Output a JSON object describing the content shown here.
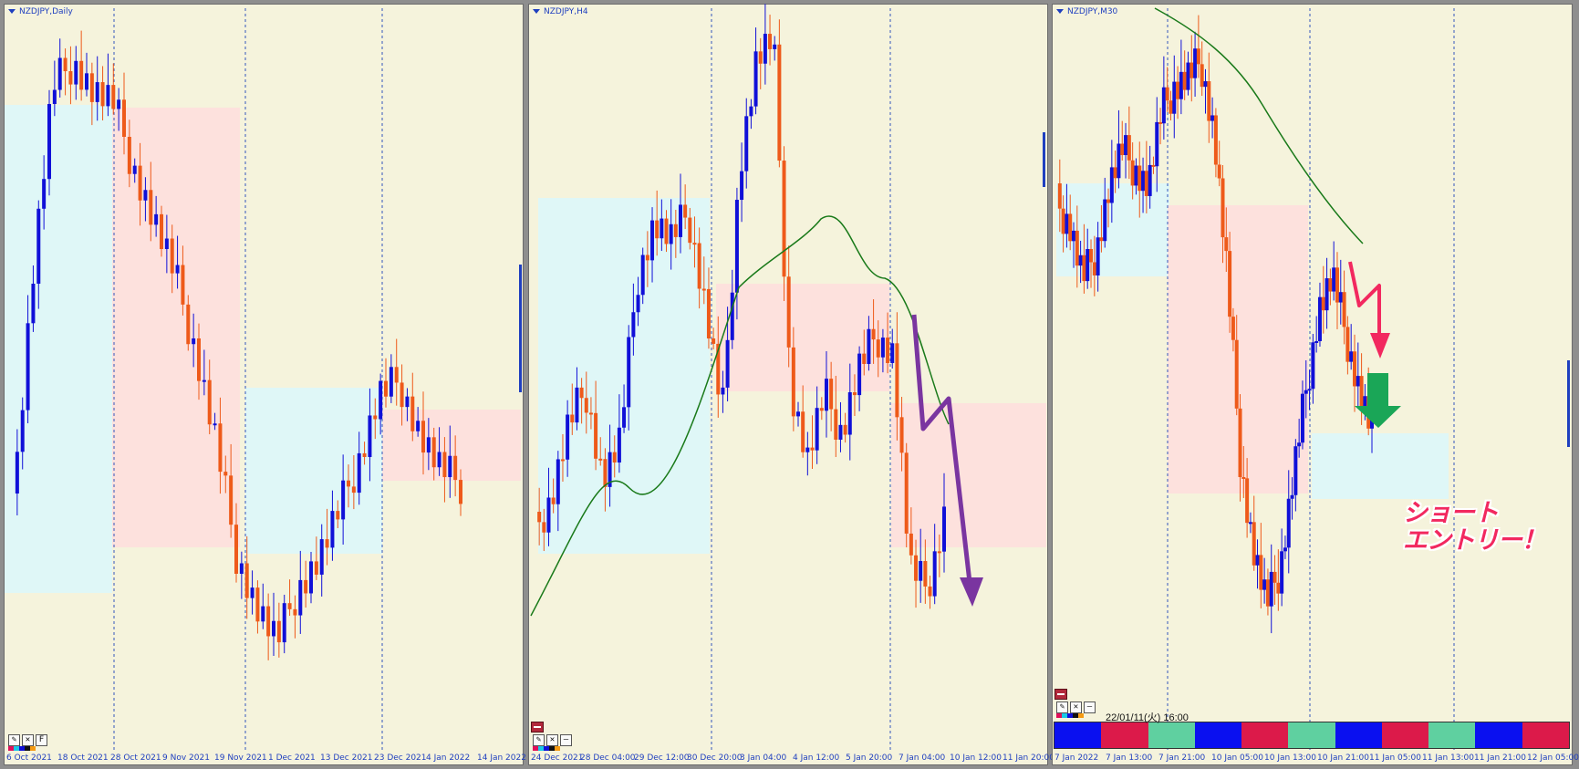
{
  "colors": {
    "bull": "#1010d8",
    "bear": "#ee5a1a",
    "bg": "#f5f3dc",
    "blueZone": "#dff7f7",
    "redZone": "#fde1dd",
    "ma": "#1a7a1a",
    "grid": "#3355bb",
    "purple": "#7a35a0",
    "pink": "#f2285f",
    "green": "#1aa657"
  },
  "panels": [
    {
      "id": "daily",
      "title": "NZDJPY,Daily",
      "xlabels": [
        "6 Oct 2021",
        "18 Oct 2021",
        "28 Oct 2021",
        "9 Nov 2021",
        "19 Nov 2021",
        "1 Dec 2021",
        "13 Dec 2021",
        "23 Dec 2021",
        "4 Jan 2022",
        "14 Jan 2022"
      ],
      "tool_labels": [
        "✕",
        "F"
      ],
      "icons": [
        "pencil-icon",
        "close-icon",
        "font-icon"
      ]
    },
    {
      "id": "h4",
      "title": "NZDJPY,H4",
      "xlabels": [
        "24 Dec 2021",
        "28 Dec 04:00",
        "29 Dec 12:00",
        "30 Dec 20:00",
        "3 Jan 04:00",
        "4 Jan 12:00",
        "5 Jan 20:00",
        "7 Jan 04:00",
        "10 Jan 12:00",
        "11 Jan 20:00"
      ],
      "tool_labels": [
        "✕",
        "–"
      ],
      "icons": [
        "minimize-icon",
        "pencil-icon",
        "close-icon"
      ]
    },
    {
      "id": "m30",
      "title": "NZDJPY,M30",
      "xlabels": [
        "7 Jan 2022",
        "7 Jan 13:00",
        "7 Jan 21:00",
        "10 Jan 05:00",
        "10 Jan 13:00",
        "10 Jan 21:00",
        "11 Jan 05:00",
        "11 Jan 13:00",
        "11 Jan 21:00",
        "12 Jan 05:00"
      ],
      "tool_labels": [
        "✕",
        "–"
      ],
      "timestamp": "22/01/11(火) 16:00",
      "annotation_line1": "ショート",
      "annotation_line2": "エントリー！",
      "icons": [
        "minimize-icon",
        "pencil-icon",
        "close-icon",
        "arrow-down-icon"
      ],
      "session_colors": [
        "#0a10f0",
        "#dc1a4a",
        "#5fd0a0",
        "#0a10f0",
        "#dc1a4a",
        "#5fd0a0",
        "#0a10f0",
        "#dc1a4a",
        "#5fd0a0",
        "#0a10f0",
        "#dc1a4a"
      ]
    }
  ]
}
